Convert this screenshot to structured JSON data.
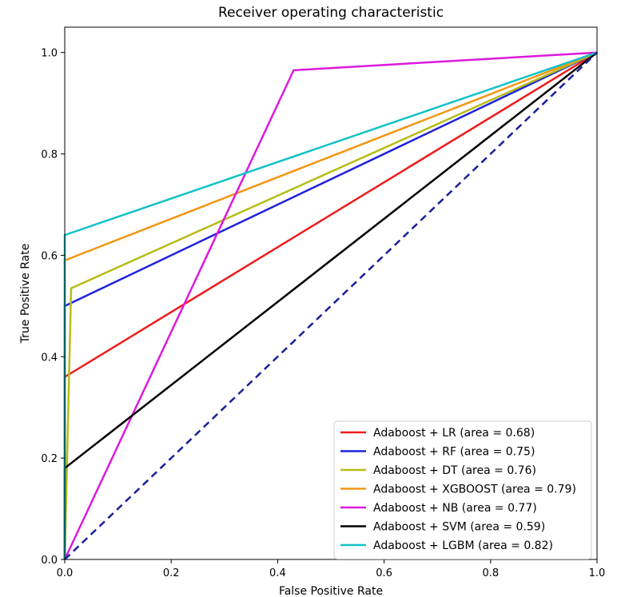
{
  "chart_data": {
    "type": "line",
    "title": "Receiver operating characteristic",
    "xlabel": "False Positive Rate",
    "ylabel": "True Positive Rate",
    "xlim": [
      0.0,
      1.0
    ],
    "ylim": [
      0.0,
      1.05
    ],
    "grid": false,
    "legend_position": "lower-right",
    "xticks": [
      {
        "value": 0.0,
        "label": "0.0"
      },
      {
        "value": 0.2,
        "label": "0.2"
      },
      {
        "value": 0.4,
        "label": "0.4"
      },
      {
        "value": 0.6,
        "label": "0.6"
      },
      {
        "value": 0.8,
        "label": "0.8"
      },
      {
        "value": 1.0,
        "label": "1.0"
      }
    ],
    "yticks": [
      {
        "value": 0.0,
        "label": "0.0"
      },
      {
        "value": 0.2,
        "label": "0.2"
      },
      {
        "value": 0.4,
        "label": "0.4"
      },
      {
        "value": 0.6,
        "label": "0.6"
      },
      {
        "value": 0.8,
        "label": "0.8"
      },
      {
        "value": 1.0,
        "label": "1.0"
      }
    ],
    "series": [
      {
        "name": "Adaboost + LR (area = 0.68)",
        "color": "#ee1c1c",
        "x": [
          0.0,
          0.0,
          1.0
        ],
        "y": [
          0.0,
          0.36,
          1.0
        ]
      },
      {
        "name": "Adaboost + RF (area = 0.75)",
        "color": "#1f22dd",
        "x": [
          0.0,
          0.0,
          1.0
        ],
        "y": [
          0.0,
          0.5,
          1.0
        ]
      },
      {
        "name": "Adaboost + DT (area = 0.76)",
        "color": "#b5bd16",
        "x": [
          0.0,
          0.012,
          1.0
        ],
        "y": [
          0.0,
          0.535,
          1.0
        ]
      },
      {
        "name": "Adaboost + XGBOOST (area = 0.79)",
        "color": "#f39612",
        "x": [
          0.0,
          0.0,
          1.0
        ],
        "y": [
          0.0,
          0.59,
          1.0
        ]
      },
      {
        "name": "Adaboost + NB (area = 0.77)",
        "color": "#dd19dd",
        "x": [
          0.0,
          0.43,
          1.0
        ],
        "y": [
          0.0,
          0.965,
          1.0
        ]
      },
      {
        "name": "Adaboost + SVM (area = 0.59)",
        "color": "#000000",
        "x": [
          0.0,
          0.0,
          1.0
        ],
        "y": [
          0.0,
          0.18,
          1.0
        ]
      },
      {
        "name": "Adaboost + LGBM (area = 0.82)",
        "color": "#12c2c6",
        "x": [
          0.0,
          0.0,
          1.0
        ],
        "y": [
          0.0,
          0.64,
          1.0
        ]
      }
    ],
    "reference_line": {
      "x": [
        0.0,
        1.0
      ],
      "y": [
        0.0,
        1.0
      ],
      "color": "#1a1f9a",
      "style": "dashed"
    }
  }
}
